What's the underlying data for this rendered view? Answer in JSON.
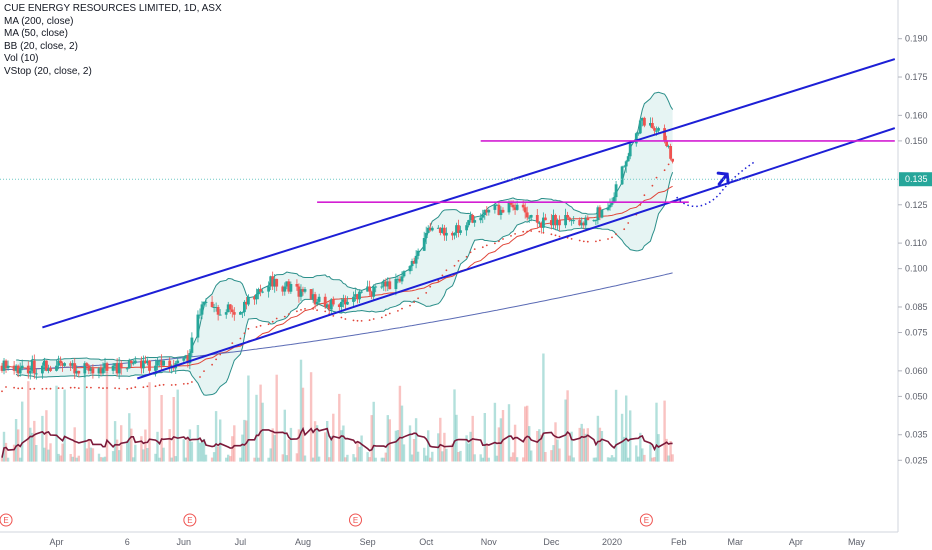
{
  "legend": {
    "title": "CUE ENERGY RESOURCES LIMITED, 1D, ASX",
    "indicators": [
      "MA (200, close)",
      "MA (50, close)",
      "BB (20, close, 2)",
      "Vol (10)",
      "VStop (20, close, 2)"
    ]
  },
  "colors": {
    "up": "#26a69a",
    "down": "#ef5350",
    "ma200": "#5b6bb5",
    "ma50": "#e0463a",
    "bb": "#2b8f8a",
    "bb_fill": "#e6f4f3",
    "vol_ma": "#7b1a3a",
    "channel": "#1d1fd6",
    "resistance": "#d31fd3",
    "last_price_line": "#6ec9c6",
    "vstop": "#e0463a"
  },
  "chart_data": {
    "type": "candlestick",
    "last_price": "0.135",
    "ylim": [
      0.0245,
      0.1975
    ],
    "y_ticks": [
      "0.190",
      "0.175",
      "0.160",
      "0.150",
      "0.125",
      "0.110",
      "0.100",
      "0.085",
      "0.075",
      "0.060",
      "0.050",
      "0.035",
      "0.025"
    ],
    "x_labels": [
      "Apr",
      "6",
      "Jun",
      "Jul",
      "Aug",
      "Sep",
      "Oct",
      "Nov",
      "Dec",
      "2020",
      "Feb",
      "Mar",
      "Apr",
      "May"
    ],
    "trendlines": [
      {
        "name": "channel-upper",
        "from": [
          "2019-03-25",
          0.077
        ],
        "to": [
          "2020-05-20",
          0.182
        ]
      },
      {
        "name": "channel-lower",
        "from": [
          "2019-05-11",
          0.057
        ],
        "to": [
          "2020-05-20",
          0.155
        ]
      },
      {
        "name": "resistance-upper",
        "from": [
          "2019-10-28",
          0.15
        ],
        "to": [
          "2020-05-20",
          0.15
        ]
      },
      {
        "name": "resistance-lower",
        "from": [
          "2019-08-08",
          0.126
        ],
        "to": [
          "2020-02-08",
          0.126
        ]
      }
    ],
    "event_markers": [
      "E",
      "E",
      "E",
      "E"
    ]
  }
}
